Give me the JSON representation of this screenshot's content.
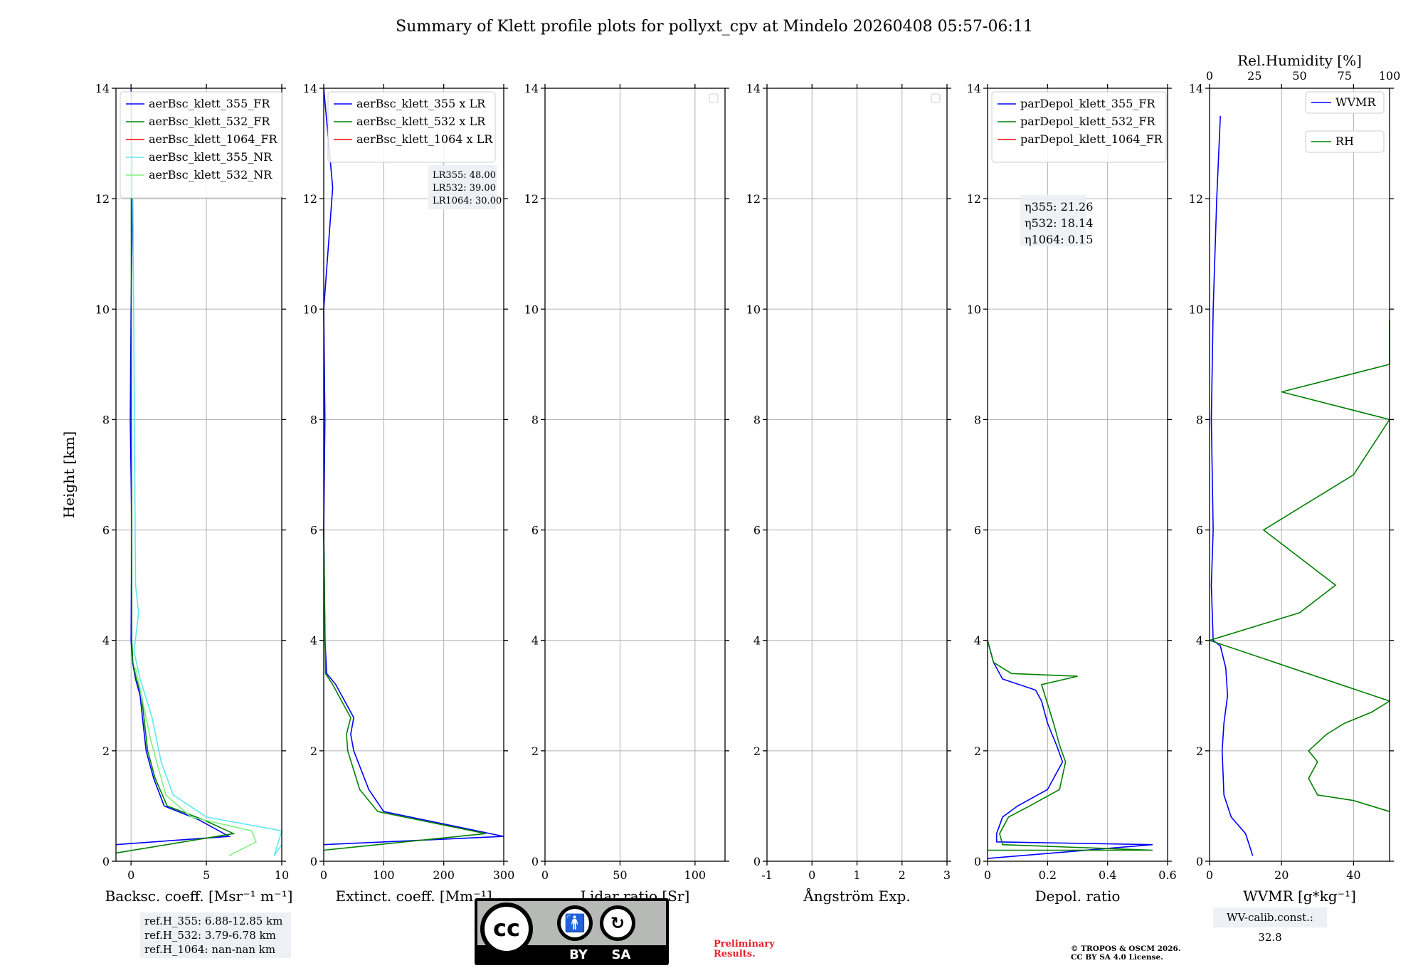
{
  "title": "Summary of Klett profile plots for pollyxt_cpv at Mindelo 20260408 05:57-06:11",
  "chart_data": [
    {
      "type": "line",
      "panel": "backscatter",
      "xlabel": "Backsc. coeff. [Msr⁻¹ m⁻¹]",
      "ylabel": "Height [km]",
      "xlim": [
        -1,
        10
      ],
      "ylim": [
        0,
        14
      ],
      "xticks": [
        0,
        5,
        10
      ],
      "yticks": [
        0,
        2,
        4,
        6,
        8,
        10,
        12,
        14
      ],
      "legend_position": "top-left",
      "series": [
        {
          "name": "aerBsc_klett_355_FR",
          "color": "#0000ff",
          "x": [
            -1,
            6.5,
            4.5,
            2.2,
            1.5,
            1.0,
            0.8,
            0.6,
            0.3,
            0.1,
            0.0,
            0.05,
            -0.05,
            0.0,
            0.1,
            0.0
          ],
          "y": [
            0.3,
            0.45,
            0.75,
            1.0,
            1.5,
            2.0,
            2.5,
            3.0,
            3.3,
            3.6,
            4.0,
            6.0,
            8.0,
            10.0,
            12.0,
            14.0
          ]
        },
        {
          "name": "aerBsc_klett_532_FR",
          "color": "#008000",
          "x": [
            -1,
            6.8,
            4.8,
            2.4,
            1.6,
            1.1,
            0.9,
            0.7,
            0.35,
            0.12,
            0.05,
            0.05,
            0.02,
            0.02,
            0.02,
            0.02
          ],
          "y": [
            0.15,
            0.5,
            0.75,
            1.0,
            1.5,
            2.0,
            2.5,
            3.0,
            3.3,
            3.6,
            4.0,
            6.0,
            8.0,
            10.0,
            12.0,
            14.0
          ]
        },
        {
          "name": "aerBsc_klett_1064_FR",
          "color": "#ff0000",
          "x": [],
          "y": []
        },
        {
          "name": "aerBsc_klett_355_NR",
          "color": "#5fe8f0",
          "x": [
            10,
            9.5,
            10,
            5.0,
            2.8,
            2.0,
            1.4,
            0.6,
            0.2,
            0.5,
            0.3,
            0.1
          ],
          "y": [
            0.3,
            0.1,
            0.55,
            0.8,
            1.2,
            1.8,
            2.6,
            3.3,
            3.8,
            4.5,
            5.0,
            13.0
          ]
        },
        {
          "name": "aerBsc_klett_532_NR",
          "color": "#80f080",
          "x": [
            6.5,
            8.3,
            8.0,
            4.0,
            2.3,
            1.3,
            0.7,
            0.3
          ],
          "y": [
            0.1,
            0.35,
            0.55,
            0.8,
            1.2,
            2.2,
            3.0,
            3.5
          ]
        }
      ],
      "annotation": [
        "ref.H_355: 6.88-12.85 km",
        "ref.H_532: 3.79-6.78 km",
        "ref.H_1064: nan-nan km"
      ]
    },
    {
      "type": "line",
      "panel": "extinction",
      "xlabel": "Extinct. coeff. [Mm⁻¹]",
      "xlim": [
        0,
        300
      ],
      "ylim": [
        0,
        14
      ],
      "xticks": [
        0,
        100,
        200,
        300
      ],
      "yticks": [
        0,
        2,
        4,
        6,
        8,
        10,
        12,
        14
      ],
      "legend_position": "top-left",
      "series": [
        {
          "name": "aerBsc_klett_355 x LR",
          "color": "#0000ff",
          "x": [
            0,
            300,
            100,
            75,
            50,
            45,
            50,
            20,
            5,
            2,
            0,
            2,
            0,
            15,
            0
          ],
          "y": [
            0.3,
            0.45,
            0.9,
            1.3,
            2.0,
            2.3,
            2.6,
            3.2,
            3.4,
            4.0,
            6.0,
            8.0,
            10.0,
            12.2,
            14.0
          ]
        },
        {
          "name": "aerBsc_klett_532 x LR",
          "color": "#008000",
          "x": [
            0,
            270,
            90,
            60,
            40,
            38,
            45,
            15,
            3,
            0
          ],
          "y": [
            0.2,
            0.5,
            0.9,
            1.3,
            2.0,
            2.3,
            2.6,
            3.2,
            3.4,
            6.0
          ]
        },
        {
          "name": "aerBsc_klett_1064 x LR",
          "color": "#ff0000",
          "x": [],
          "y": []
        }
      ],
      "annotation": [
        "LR355: 48.00",
        "LR532: 39.00",
        "LR1064: 30.00"
      ]
    },
    {
      "type": "line",
      "panel": "lidar_ratio",
      "xlabel": "Lidar ratio [Sr]",
      "xlim": [
        0,
        120
      ],
      "ylim": [
        0,
        14
      ],
      "xticks": [
        0,
        50,
        100
      ],
      "yticks": [
        0,
        2,
        4,
        6,
        8,
        10,
        12,
        14
      ],
      "series": []
    },
    {
      "type": "line",
      "panel": "angstrom",
      "xlabel": "Ångström Exp.",
      "xlim": [
        -1,
        3
      ],
      "ylim": [
        0,
        14
      ],
      "xticks": [
        -1,
        0,
        1,
        2,
        3
      ],
      "yticks": [
        0,
        2,
        4,
        6,
        8,
        10,
        12,
        14
      ],
      "series": []
    },
    {
      "type": "line",
      "panel": "depolarization",
      "xlabel": "Depol. ratio",
      "xlim": [
        0,
        0.6
      ],
      "ylim": [
        0,
        14
      ],
      "xticks": [
        0.0,
        0.2,
        0.4,
        0.6
      ],
      "yticks": [
        0,
        2,
        4,
        6,
        8,
        10,
        12,
        14
      ],
      "legend_position": "top-left",
      "series": [
        {
          "name": "parDepol_klett_355_FR",
          "color": "#0000ff",
          "x": [
            0.0,
            0.55,
            0.03,
            0.03,
            0.05,
            0.1,
            0.2,
            0.25,
            0.23,
            0.2,
            0.18,
            0.16,
            0.05,
            0.02,
            0.0
          ],
          "y": [
            0.05,
            0.3,
            0.35,
            0.5,
            0.8,
            1.0,
            1.3,
            1.8,
            2.1,
            2.5,
            2.9,
            3.1,
            3.3,
            3.6,
            4.0
          ]
        },
        {
          "name": "parDepol_klett_532_FR",
          "color": "#008000",
          "x": [
            0.0,
            0.55,
            0.05,
            0.04,
            0.07,
            0.14,
            0.24,
            0.26,
            0.24,
            0.22,
            0.18,
            0.3,
            0.08,
            0.02,
            0.0
          ],
          "y": [
            0.2,
            0.2,
            0.3,
            0.5,
            0.8,
            1.0,
            1.3,
            1.8,
            2.1,
            2.5,
            3.2,
            3.35,
            3.4,
            3.6,
            4.0
          ]
        },
        {
          "name": "parDepol_klett_1064_FR",
          "color": "#ff0000",
          "x": [],
          "y": []
        }
      ],
      "annotation": [
        "η355: 21.26",
        "η532: 18.14",
        "η1064: 0.15"
      ]
    },
    {
      "type": "line",
      "panel": "wvmr",
      "xlabel": "WVMR [g*kg⁻¹]",
      "xlabel_top": "Rel.Humidity [%]",
      "xlim": [
        0,
        50
      ],
      "xlim_top": [
        0,
        100
      ],
      "ylim": [
        0,
        14
      ],
      "xticks": [
        0,
        20,
        40
      ],
      "xticks_top": [
        0,
        25,
        50,
        75,
        100
      ],
      "yticks": [
        0,
        2,
        4,
        6,
        8,
        10,
        12,
        14
      ],
      "legend_position": "top-right",
      "series": [
        {
          "name": "WVMR",
          "color": "#0000ff",
          "axis": "bottom",
          "x": [
            12,
            11,
            10,
            6,
            4,
            3.5,
            4,
            5,
            4.5,
            3,
            1,
            0.5,
            1,
            0.5,
            1,
            2,
            3
          ],
          "y": [
            0.1,
            0.3,
            0.5,
            0.8,
            1.2,
            2.0,
            2.5,
            3.0,
            3.5,
            3.9,
            4.0,
            5.0,
            6.0,
            8.0,
            10.0,
            12.0,
            13.5
          ]
        },
        {
          "name": "RH",
          "color": "#008000",
          "axis": "top",
          "x": [
            100,
            80,
            60,
            55,
            60,
            55,
            65,
            75,
            90,
            100,
            0,
            50,
            70,
            30,
            80,
            100,
            40,
            100,
            100
          ],
          "y": [
            0.9,
            1.1,
            1.2,
            1.5,
            1.8,
            2.0,
            2.3,
            2.5,
            2.7,
            2.9,
            4.0,
            4.5,
            5.0,
            6.0,
            7.0,
            8.0,
            8.5,
            9.0,
            9.8
          ]
        }
      ],
      "annotation": [
        "WV-calib.const.: 32.8"
      ]
    }
  ],
  "footer": {
    "refbox": [
      "ref.H_355: 6.88-12.85 km",
      "ref.H_532: 3.79-6.78 km",
      "ref.H_1064: nan-nan km"
    ],
    "wv_calib": "WV-calib.const.: 32.8",
    "preliminary": [
      "Preliminary",
      "Results."
    ],
    "copyright": [
      "© TROPOS & OSCM 2026.",
      "CC BY SA 4.0 License."
    ],
    "license_badge": {
      "cc": "cc",
      "by": "BY",
      "sa": "SA"
    }
  },
  "colors": {
    "blue": "#0000ff",
    "green": "#008000",
    "red": "#ff0000",
    "cyan": "#5fe8f0",
    "lightgreen": "#80f080",
    "grid": "#b0b0b0"
  }
}
